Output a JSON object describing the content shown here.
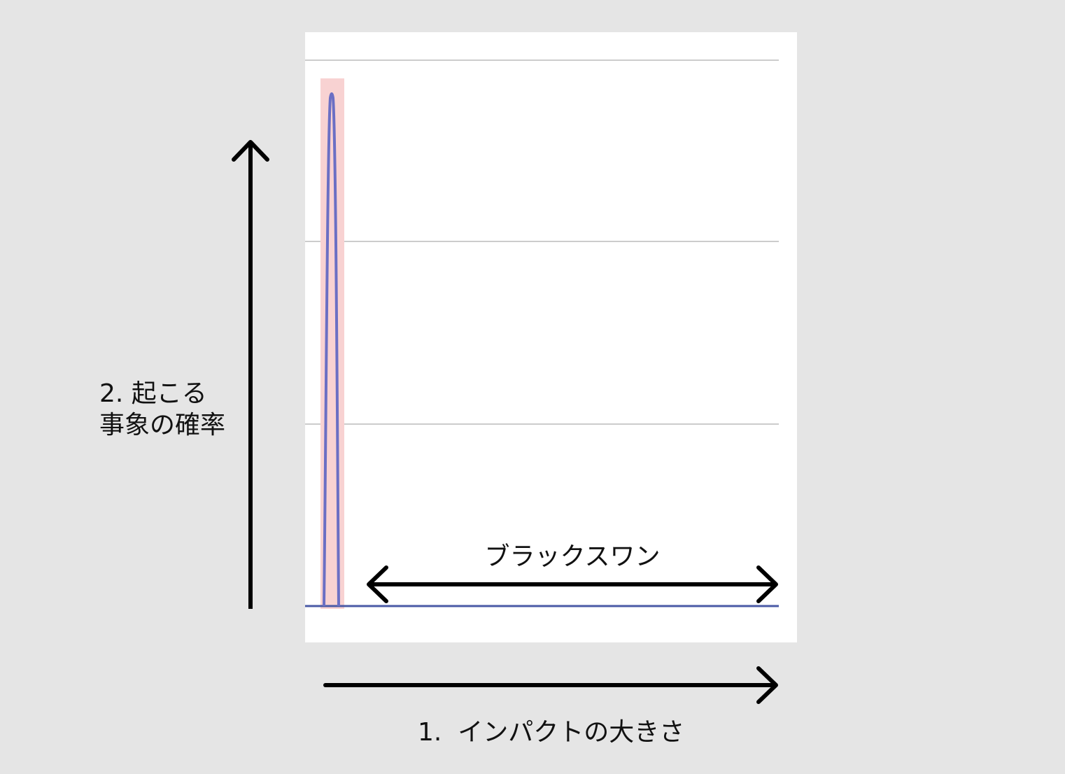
{
  "labels": {
    "y_axis_line1": "2. 起こる",
    "y_axis_line2": "事象の確率",
    "x_axis": "1.  インパクトの大きさ",
    "black_swan": "ブラックスワン"
  },
  "colors": {
    "background": "#e5e5e5",
    "panel": "#ffffff",
    "gridline": "#cccccc",
    "curve": "#6b6fc4",
    "highlight": "#f8d2d2",
    "baseline": "#4a5aa6",
    "arrows": "#000000"
  },
  "chart_data": {
    "type": "line",
    "grid": true,
    "gridline_count": 3,
    "curve_shape": "narrow-peak-near-origin",
    "highlight_region": "peak",
    "annotation": "ブラックスワン"
  }
}
